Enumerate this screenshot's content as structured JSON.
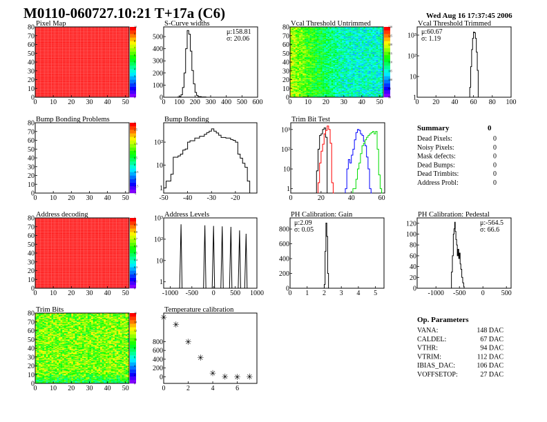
{
  "header": {
    "title": "M0110-060727.10:21 T+17a (C6)",
    "timestamp": "Wed Aug 16 17:37:45 2006"
  },
  "colors": {
    "hist_line": "#000000",
    "trim_series": [
      "#000000",
      "#ff0000",
      "#0000ff",
      "#00dd00"
    ],
    "palette": "rainbow"
  },
  "chart_data": [
    {
      "id": "pixel-map",
      "type": "heatmap",
      "title": "Pixel Map",
      "xlim": [
        0,
        52
      ],
      "ylim": [
        0,
        80
      ],
      "xticks": [
        0,
        10,
        20,
        30,
        40,
        50
      ],
      "yticks": [
        0,
        10,
        20,
        30,
        40,
        50,
        60,
        70,
        80
      ],
      "zlim": [
        0,
        10
      ],
      "zticks": [
        "0",
        "1",
        "2",
        "3",
        "4",
        "5",
        "6",
        "7",
        "8",
        "9",
        "10"
      ],
      "pattern": "uniform",
      "z_value": 10
    },
    {
      "id": "s-curve-widths",
      "type": "histogram",
      "title": "S-Curve widths",
      "xlim": [
        0,
        600
      ],
      "ylim": [
        0,
        580
      ],
      "xticks": [
        0,
        100,
        200,
        300,
        400,
        500,
        600
      ],
      "yticks": [
        0,
        100,
        200,
        300,
        400,
        500
      ],
      "stats": [
        "μ:158.81",
        "σ: 20.06"
      ],
      "series": [
        {
          "color": "#000000",
          "points": [
            [
              40,
              0
            ],
            [
              90,
              2
            ],
            [
              100,
              5
            ],
            [
              110,
              20
            ],
            [
              120,
              80
            ],
            [
              130,
              200
            ],
            [
              140,
              400
            ],
            [
              150,
              550
            ],
            [
              160,
              520
            ],
            [
              170,
              380
            ],
            [
              180,
              220
            ],
            [
              190,
              110
            ],
            [
              200,
              40
            ],
            [
              210,
              15
            ],
            [
              220,
              5
            ],
            [
              240,
              2
            ],
            [
              270,
              0
            ]
          ]
        }
      ]
    },
    {
      "id": "vcal-threshold-untrimmed",
      "type": "heatmap",
      "title": "Vcal Threshold Untrimmed",
      "xlim": [
        0,
        52
      ],
      "ylim": [
        0,
        80
      ],
      "xticks": [
        0,
        10,
        20,
        30,
        40,
        50
      ],
      "yticks": [
        0,
        10,
        20,
        30,
        40,
        50,
        60,
        70,
        80
      ],
      "zlim": [
        90,
        130
      ],
      "zticks": [
        "90",
        "95",
        "100",
        "105",
        "110",
        "115",
        "120",
        "125",
        "130"
      ],
      "pattern": "gradient-left-high",
      "z_left": 118,
      "z_right": 105
    },
    {
      "id": "vcal-threshold-trimmed",
      "type": "histogram",
      "title": "Vcal Threshold Trimmed",
      "log": true,
      "xlim": [
        0,
        100
      ],
      "ylim": [
        1,
        2500
      ],
      "xticks": [
        0,
        20,
        40,
        60,
        80,
        100
      ],
      "yticks": [
        1,
        10,
        100,
        1000
      ],
      "stats": [
        "μ:60.67",
        "σ: 1.19"
      ],
      "series": [
        {
          "color": "#000000",
          "points": [
            [
              56,
              3
            ],
            [
              57,
              30
            ],
            [
              58,
              200
            ],
            [
              59,
              700
            ],
            [
              60,
              1400
            ],
            [
              61,
              1300
            ],
            [
              62,
              700
            ],
            [
              63,
              150
            ],
            [
              64,
              20
            ],
            [
              65,
              1
            ]
          ]
        }
      ]
    },
    {
      "id": "bump-bonding-problems",
      "type": "heatmap",
      "title": "Bump Bonding Problems",
      "xlim": [
        0,
        52
      ],
      "ylim": [
        0,
        80
      ],
      "xticks": [
        0,
        10,
        20,
        30,
        40,
        50
      ],
      "yticks": [
        0,
        10,
        20,
        30,
        40,
        50,
        60,
        70,
        80
      ],
      "zlim": [
        -2,
        3
      ],
      "zticks": [
        "-2",
        "-1.5",
        "-1",
        "-0.5",
        "0",
        "0.5",
        "1",
        "1.5",
        "2",
        "2.5",
        "3"
      ],
      "pattern": "empty"
    },
    {
      "id": "bump-bonding",
      "type": "histogram",
      "title": "Bump Bonding",
      "log": true,
      "xlim": [
        -50,
        -11
      ],
      "ylim": [
        0.6,
        700
      ],
      "xticks": [
        -50,
        -40,
        -30,
        -20
      ],
      "yticks": [
        1,
        10,
        100
      ],
      "series": [
        {
          "color": "#000000",
          "points": [
            [
              -50,
              1
            ],
            [
              -49,
              2
            ],
            [
              -47,
              4
            ],
            [
              -46,
              22
            ],
            [
              -44,
              25
            ],
            [
              -43,
              30
            ],
            [
              -42,
              45
            ],
            [
              -41,
              50
            ],
            [
              -40,
              100
            ],
            [
              -39,
              115
            ],
            [
              -37,
              150
            ],
            [
              -35,
              180
            ],
            [
              -33,
              220
            ],
            [
              -32,
              260
            ],
            [
              -31,
              300
            ],
            [
              -30,
              380
            ],
            [
              -29,
              300
            ],
            [
              -28,
              250
            ],
            [
              -27,
              200
            ],
            [
              -26,
              160
            ],
            [
              -24,
              150
            ],
            [
              -22,
              130
            ],
            [
              -21,
              120
            ],
            [
              -20,
              100
            ],
            [
              -19,
              30
            ],
            [
              -18,
              20
            ],
            [
              -17,
              12
            ],
            [
              -16,
              8
            ],
            [
              -15,
              2
            ],
            [
              -14,
              0.5
            ]
          ]
        }
      ]
    },
    {
      "id": "trim-bit-test",
      "type": "histogram",
      "title": "Trim Bit Test",
      "log": true,
      "xlim": [
        0,
        62
      ],
      "ylim": [
        0.6,
        2200
      ],
      "xticks": [
        0,
        20,
        40,
        60
      ],
      "yticks": [
        1,
        10,
        100,
        1000
      ],
      "series": [
        {
          "color": "#000000",
          "points": [
            [
              16,
              0.6
            ],
            [
              17,
              8
            ],
            [
              18,
              100
            ],
            [
              19,
              500
            ],
            [
              20,
              600
            ],
            [
              21,
              1000
            ],
            [
              22,
              1200
            ],
            [
              23,
              400
            ],
            [
              24,
              0.6
            ]
          ]
        },
        {
          "color": "#ff0000",
          "points": [
            [
              18,
              2
            ],
            [
              19,
              20
            ],
            [
              20,
              80
            ],
            [
              21,
              180
            ],
            [
              22,
              600
            ],
            [
              23,
              900
            ],
            [
              24,
              1500
            ],
            [
              25,
              1000
            ],
            [
              26,
              200
            ],
            [
              27,
              2
            ],
            [
              28,
              0.6
            ]
          ]
        },
        {
          "color": "#0000ff",
          "points": [
            [
              36,
              1
            ],
            [
              37,
              10
            ],
            [
              38,
              30
            ],
            [
              39,
              20
            ],
            [
              40,
              50
            ],
            [
              41,
              100
            ],
            [
              42,
              300
            ],
            [
              43,
              700
            ],
            [
              44,
              1000
            ],
            [
              45,
              900
            ],
            [
              46,
              600
            ],
            [
              47,
              500
            ],
            [
              48,
              250
            ],
            [
              49,
              150
            ],
            [
              50,
              40
            ],
            [
              51,
              10
            ],
            [
              52,
              1
            ],
            [
              53,
              0.6
            ]
          ]
        },
        {
          "color": "#00dd00",
          "points": [
            [
              41,
              1
            ],
            [
              43,
              3
            ],
            [
              44,
              10
            ],
            [
              45,
              20
            ],
            [
              46,
              60
            ],
            [
              47,
              150
            ],
            [
              48,
              200
            ],
            [
              49,
              300
            ],
            [
              50,
              400
            ],
            [
              51,
              500
            ],
            [
              52,
              600
            ],
            [
              53,
              700
            ],
            [
              54,
              800
            ],
            [
              55,
              600
            ],
            [
              56,
              800
            ],
            [
              57,
              100
            ],
            [
              58,
              5
            ],
            [
              59,
              1
            ],
            [
              60,
              0.6
            ]
          ]
        }
      ]
    },
    {
      "id": "address-decoding",
      "type": "heatmap",
      "title": "Address decoding",
      "xlim": [
        0,
        52
      ],
      "ylim": [
        0,
        80
      ],
      "xticks": [
        0,
        10,
        20,
        30,
        40,
        50
      ],
      "yticks": [
        0,
        10,
        20,
        30,
        40,
        50,
        60,
        70,
        80
      ],
      "zlim": [
        0,
        1
      ],
      "zticks": [
        "0",
        "0.1",
        "0.2",
        "0.3",
        "0.4",
        "0.5",
        "0.6",
        "0.7",
        "0.8",
        "0.9",
        "1"
      ],
      "pattern": "uniform",
      "z_value": 1
    },
    {
      "id": "address-levels",
      "type": "spikes",
      "title": "Address Levels",
      "log": true,
      "xlim": [
        -1150,
        1000
      ],
      "ylim": [
        0.5,
        1000
      ],
      "xticks": [
        -1000,
        -500,
        0,
        500,
        1000
      ],
      "yticks": [
        1,
        10,
        100,
        1000
      ],
      "series": [
        {
          "color": "#000000",
          "points": [
            [
              -750,
              500
            ],
            [
              -200,
              450
            ],
            [
              0,
              420
            ],
            [
              200,
              400
            ],
            [
              400,
              380
            ],
            [
              600,
              260
            ],
            [
              750,
              180
            ]
          ]
        }
      ]
    },
    {
      "id": "ph-calibration-gain",
      "type": "histogram",
      "title": "PH Calibration: Gain",
      "xlim": [
        0,
        5.5
      ],
      "ylim": [
        0,
        950
      ],
      "xticks": [
        0,
        1,
        2,
        3,
        4,
        5
      ],
      "yticks": [
        0,
        200,
        400,
        600,
        800
      ],
      "stats": [
        "μ:2.09",
        "σ: 0.05"
      ],
      "series": [
        {
          "color": "#000000",
          "points": [
            [
              1.95,
              0
            ],
            [
              2.0,
              50
            ],
            [
              2.05,
              500
            ],
            [
              2.1,
              880
            ],
            [
              2.15,
              700
            ],
            [
              2.2,
              200
            ],
            [
              2.25,
              0
            ]
          ]
        }
      ]
    },
    {
      "id": "ph-calibration-pedestal",
      "type": "histogram",
      "title": "PH Calibration: Pedestal",
      "xlim": [
        -1400,
        600
      ],
      "ylim": [
        0,
        130
      ],
      "xticks": [
        -1000,
        -500,
        0,
        500
      ],
      "yticks": [
        0,
        20,
        40,
        60,
        80,
        100,
        120
      ],
      "stats": [
        "μ:-564.5",
        "σ: 66.6"
      ],
      "series": [
        {
          "color": "#000000",
          "points": [
            [
              -700,
              0
            ],
            [
              -670,
              30
            ],
            [
              -650,
              60
            ],
            [
              -630,
              100
            ],
            [
              -615,
              110
            ],
            [
              -600,
              122
            ],
            [
              -590,
              105
            ],
            [
              -575,
              90
            ],
            [
              -560,
              80
            ],
            [
              -545,
              60
            ],
            [
              -530,
              72
            ],
            [
              -515,
              55
            ],
            [
              -500,
              65
            ],
            [
              -485,
              45
            ],
            [
              -470,
              35
            ],
            [
              -450,
              20
            ],
            [
              -430,
              10
            ],
            [
              -410,
              3
            ],
            [
              -400,
              0
            ]
          ]
        }
      ]
    },
    {
      "id": "trim-bits",
      "type": "heatmap",
      "title": "Trim Bits",
      "xlim": [
        0,
        52
      ],
      "ylim": [
        0,
        80
      ],
      "xticks": [
        0,
        10,
        20,
        30,
        40,
        50
      ],
      "yticks": [
        0,
        10,
        20,
        30,
        40,
        50,
        60,
        70,
        80
      ],
      "zlim": [
        0,
        16
      ],
      "zticks": [
        "0",
        "2",
        "4",
        "6",
        "8",
        "10",
        "12",
        "14",
        "16"
      ],
      "pattern": "noisy",
      "z_mean": 10.5
    },
    {
      "id": "temperature-calibration",
      "type": "scatter",
      "title": "Temperature calibration",
      "xlim": [
        0,
        7.6
      ],
      "ylim": [
        -150,
        1450
      ],
      "xticks": [
        0,
        2,
        4,
        6
      ],
      "yticks": [
        0,
        200,
        400,
        600,
        800
      ],
      "series": [
        {
          "color": "#000000",
          "marker": "star",
          "points": [
            [
              0,
              1350
            ],
            [
              1,
              1180
            ],
            [
              2,
              790
            ],
            [
              3,
              430
            ],
            [
              4,
              80
            ],
            [
              5,
              0
            ],
            [
              6,
              -5
            ],
            [
              7,
              0
            ]
          ]
        }
      ]
    }
  ],
  "summary": {
    "title": "Summary",
    "total": "0",
    "rows": [
      {
        "label": "Dead Pixels:",
        "value": "0"
      },
      {
        "label": "Noisy Pixels:",
        "value": "0"
      },
      {
        "label": "Mask defects:",
        "value": "0"
      },
      {
        "label": "Dead Bumps:",
        "value": "0"
      },
      {
        "label": "Dead Trimbits:",
        "value": "0"
      },
      {
        "label": "Address Probl:",
        "value": "0"
      }
    ]
  },
  "parameters": {
    "title": "Op. Parameters",
    "rows": [
      {
        "label": "VANA:",
        "value": "148 DAC"
      },
      {
        "label": "CALDEL:",
        "value": "67 DAC"
      },
      {
        "label": "VTHR:",
        "value": "94 DAC"
      },
      {
        "label": "VTRIM:",
        "value": "112 DAC"
      },
      {
        "label": "IBIAS_DAC:",
        "value": "106 DAC"
      },
      {
        "label": "VOFFSETOP:",
        "value": "27 DAC"
      }
    ]
  }
}
